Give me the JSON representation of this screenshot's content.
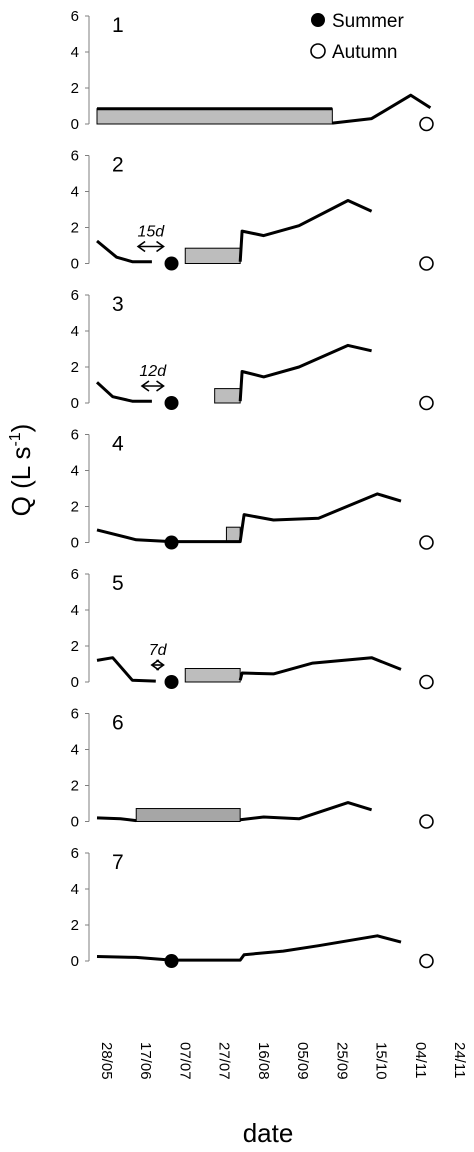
{
  "chart_data": {
    "type": "line",
    "xlabel": "date",
    "ylabel": "Q (L s",
    "ylabel_sup": "-1",
    "ylabel_close": ")",
    "ylim": [
      0,
      6
    ],
    "yticks": [
      "0",
      "2",
      "4",
      "6"
    ],
    "xticks": [
      "28/05",
      "17/06",
      "07/07",
      "27/07",
      "16/08",
      "05/09",
      "25/09",
      "15/10",
      "04/11",
      "24/11"
    ],
    "legend": {
      "position": "top-right",
      "summer": "Summer",
      "autumn": "Autumn"
    },
    "panels": [
      {
        "label": "1",
        "series": [
          [
            [
              0,
              0.85
            ],
            [
              120,
              0.85
            ]
          ],
          [
            [
              120,
              0.05
            ],
            [
              140,
              0.3
            ],
            [
              160,
              1.6
            ],
            [
              170,
              0.9
            ]
          ]
        ],
        "bars": [
          {
            "x0": 0,
            "x1": 120,
            "h": 0.85,
            "fill": "#bdbdbd"
          }
        ],
        "summer": null,
        "autumn": 168,
        "lag": null
      },
      {
        "label": "2",
        "series": [
          [
            [
              0,
              1.25
            ],
            [
              10,
              0.35
            ],
            [
              18,
              0.1
            ],
            [
              28,
              0.1
            ]
          ],
          [
            [
              73,
              0.1
            ],
            [
              74,
              1.8
            ],
            [
              85,
              1.55
            ],
            [
              103,
              2.1
            ],
            [
              128,
              3.5
            ],
            [
              140,
              2.9
            ]
          ]
        ],
        "bars": [
          {
            "x0": 45,
            "x1": 73,
            "h": 0.85,
            "fill": "#bdbdbd"
          }
        ],
        "summer": 38,
        "autumn": 168,
        "lag": {
          "text": "15d",
          "x0": 24,
          "x1": 38
        }
      },
      {
        "label": "3",
        "series": [
          [
            [
              0,
              1.15
            ],
            [
              8,
              0.35
            ],
            [
              18,
              0.1
            ],
            [
              28,
              0.1
            ]
          ],
          [
            [
              73,
              0.1
            ],
            [
              74,
              1.75
            ],
            [
              85,
              1.45
            ],
            [
              103,
              2.0
            ],
            [
              128,
              3.2
            ],
            [
              140,
              2.9
            ]
          ]
        ],
        "bars": [
          {
            "x0": 60,
            "x1": 73,
            "h": 0.8,
            "fill": "#bdbdbd"
          }
        ],
        "summer": 38,
        "autumn": 168,
        "lag": {
          "text": "12d",
          "x0": 26,
          "x1": 38
        }
      },
      {
        "label": "4",
        "series": [
          [
            [
              0,
              0.7
            ],
            [
              20,
              0.15
            ],
            [
              38,
              0.05
            ],
            [
              73,
              0.05
            ],
            [
              75,
              1.55
            ],
            [
              90,
              1.25
            ],
            [
              113,
              1.35
            ],
            [
              143,
              2.7
            ],
            [
              155,
              2.3
            ]
          ]
        ],
        "bars": [
          {
            "x0": 66,
            "x1": 73,
            "h": 0.85,
            "fill": "#bdbdbd"
          }
        ],
        "summer": 38,
        "autumn": 168,
        "lag": null
      },
      {
        "label": "5",
        "series": [
          [
            [
              0,
              1.2
            ],
            [
              8,
              1.35
            ],
            [
              18,
              0.1
            ],
            [
              30,
              0.05
            ]
          ],
          [
            [
              73,
              0.1
            ],
            [
              74,
              0.5
            ],
            [
              90,
              0.45
            ],
            [
              110,
              1.05
            ],
            [
              140,
              1.35
            ],
            [
              155,
              0.7
            ]
          ]
        ],
        "bars": [
          {
            "x0": 45,
            "x1": 73,
            "h": 0.75,
            "fill": "#bdbdbd"
          }
        ],
        "summer": 38,
        "autumn": 168,
        "lag": {
          "text": "7d",
          "x0": 31,
          "x1": 38
        }
      },
      {
        "label": "6",
        "series": [
          [
            [
              0,
              0.2
            ],
            [
              12,
              0.15
            ],
            [
              20,
              0.05
            ]
          ],
          [
            [
              73,
              0.1
            ],
            [
              85,
              0.25
            ],
            [
              103,
              0.15
            ],
            [
              128,
              1.05
            ],
            [
              140,
              0.65
            ]
          ]
        ],
        "bars": [
          {
            "x0": 20,
            "x1": 73,
            "h": 0.72,
            "fill": "#a6a6a6"
          }
        ],
        "summer": null,
        "autumn": 168,
        "lag": null
      },
      {
        "label": "7",
        "series": [
          [
            [
              0,
              0.25
            ],
            [
              20,
              0.2
            ],
            [
              38,
              0.05
            ],
            [
              73,
              0.05
            ],
            [
              75,
              0.35
            ],
            [
              95,
              0.55
            ],
            [
              113,
              0.85
            ],
            [
              143,
              1.4
            ],
            [
              155,
              1.05
            ]
          ]
        ],
        "bars": [],
        "summer": 38,
        "autumn": 168,
        "lag": null
      }
    ]
  }
}
